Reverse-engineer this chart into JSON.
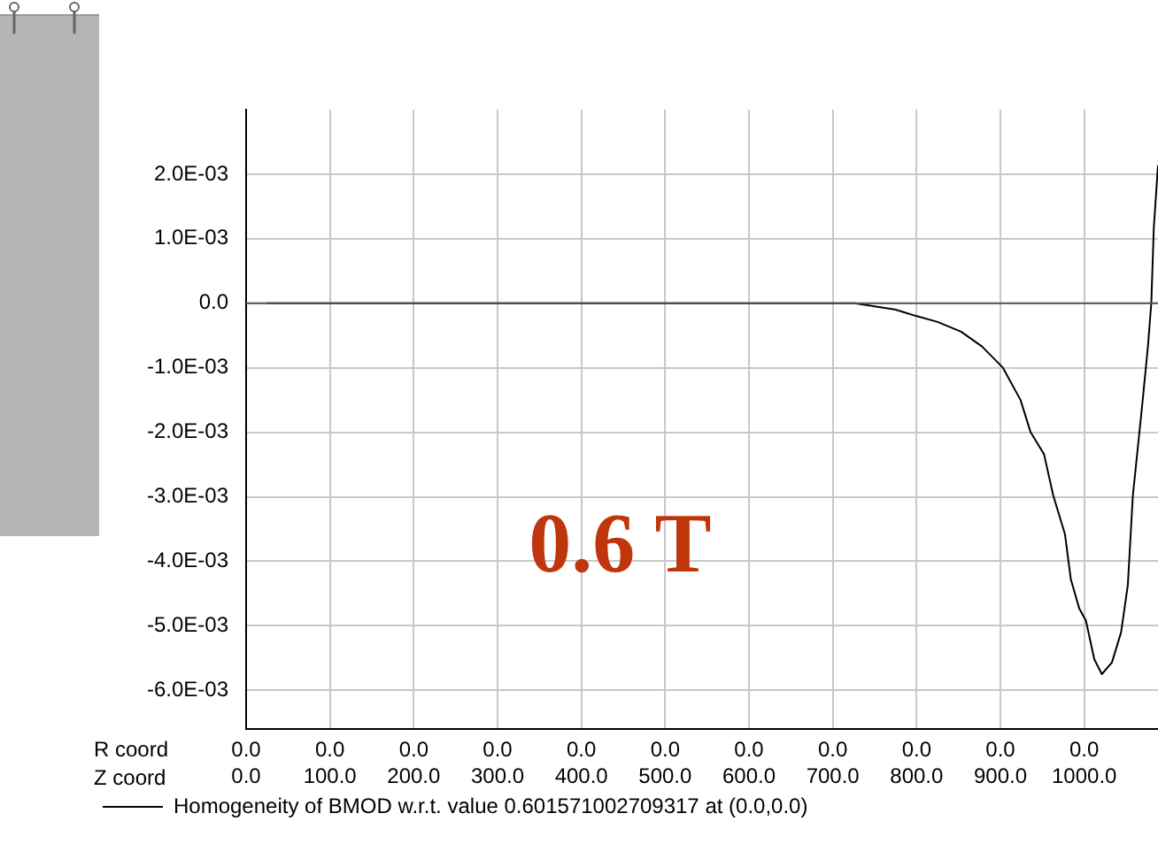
{
  "chart_data": {
    "type": "line",
    "xlabel": "Z coord",
    "x2label": "R coord",
    "annotations": [
      "0.6 T",
      "0.0",
      "0.0",
      "0.0",
      "0.0",
      "0.0",
      "0.0",
      "0.0",
      "0.0",
      "0.0",
      "0.0",
      "0.0"
    ],
    "xlim": [
      0,
      1088
    ],
    "ylim": [
      -0.0066,
      0.003
    ],
    "xticks": [
      {
        "value": 0,
        "label": "0.0"
      },
      {
        "value": 100,
        "label": "100.0"
      },
      {
        "value": 200,
        "label": "200.0"
      },
      {
        "value": 300,
        "label": "300.0"
      },
      {
        "value": 400,
        "label": "400.0"
      },
      {
        "value": 500,
        "label": "500.0"
      },
      {
        "value": 600,
        "label": "600.0"
      },
      {
        "value": 700,
        "label": "700.0"
      },
      {
        "value": 800,
        "label": "800.0"
      },
      {
        "value": 900,
        "label": "900.0"
      },
      {
        "value": 1000,
        "label": "1000.0"
      }
    ],
    "yticks": [
      {
        "value": 0.002,
        "label": "2.0E-03"
      },
      {
        "value": 0.001,
        "label": "1.0E-03"
      },
      {
        "value": 0,
        "label": "0.0"
      },
      {
        "value": -0.001,
        "label": "-1.0E-03"
      },
      {
        "value": -0.002,
        "label": "-2.0E-03"
      },
      {
        "value": -0.003,
        "label": "-3.0E-03"
      },
      {
        "value": -0.004,
        "label": "-4.0E-03"
      },
      {
        "value": -0.005,
        "label": "-5.0E-03"
      },
      {
        "value": -0.006,
        "label": "-6.0E-03"
      }
    ],
    "ref_lines": [
      {
        "axis": "y",
        "value": 0,
        "color": "#555555"
      }
    ],
    "grid": true,
    "legend": "bottom",
    "marker": "none",
    "line_style": "solid",
    "series": [
      {
        "name": "Homogeneity of BMOD w.r.t. value 0.601571002709317 at (0.0,0.0)",
        "color": "#000000",
        "x": [
          25,
          300,
          599,
          676,
          726,
          775,
          800,
          825,
          853,
          878,
          903,
          924,
          936,
          952,
          963,
          977,
          984,
          994,
          1002,
          1012,
          1021,
          1033,
          1044,
          1052,
          1058,
          1069,
          1076,
          1080,
          1083,
          1088
        ],
        "values": [
          0,
          0,
          0,
          0,
          0,
          -0.0001,
          -0.0002,
          -0.00029,
          -0.00044,
          -0.00067,
          -0.001,
          -0.0015,
          -0.002,
          -0.00234,
          -0.00298,
          -0.00358,
          -0.00428,
          -0.00473,
          -0.00492,
          -0.00552,
          -0.00575,
          -0.00557,
          -0.0051,
          -0.00437,
          -0.00298,
          -0.0016,
          -0.00067,
          0,
          0.00117,
          0.00214
        ]
      }
    ]
  }
}
